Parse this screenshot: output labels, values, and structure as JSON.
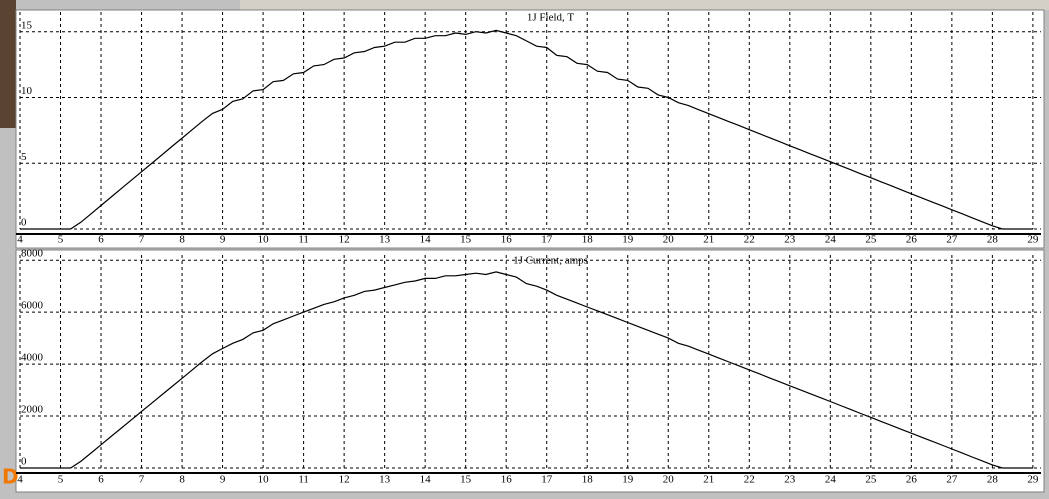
{
  "chart_data": [
    {
      "type": "line",
      "title": "1J Field, T",
      "color": "#000000",
      "grid": true,
      "xlim": [
        4,
        29.2
      ],
      "ylim": [
        0,
        16.5
      ],
      "xticks": [
        4,
        5,
        6,
        7,
        8,
        9,
        10,
        11,
        12,
        13,
        14,
        15,
        16,
        17,
        18,
        19,
        20,
        21,
        22,
        23,
        24,
        25,
        26,
        27,
        28,
        29
      ],
      "yticks": [
        0,
        5,
        10,
        15
      ],
      "x": [
        4,
        4.25,
        4.5,
        4.75,
        5,
        5.25,
        5.5,
        5.75,
        6,
        6.25,
        6.5,
        6.75,
        7,
        7.25,
        7.5,
        7.75,
        8,
        8.25,
        8.5,
        8.75,
        9,
        9.25,
        9.5,
        9.75,
        10,
        10.25,
        10.5,
        10.75,
        11,
        11.25,
        11.5,
        11.75,
        12,
        12.25,
        12.5,
        12.75,
        13,
        13.25,
        13.5,
        13.75,
        14,
        14.25,
        14.5,
        14.75,
        15,
        15.25,
        15.5,
        15.75,
        16,
        16.25,
        16.5,
        16.75,
        17,
        17.25,
        17.5,
        17.75,
        18,
        18.25,
        18.5,
        18.75,
        19,
        19.25,
        19.5,
        19.75,
        20,
        20.25,
        20.5,
        20.75,
        21,
        21.25,
        21.5,
        21.75,
        22,
        22.25,
        22.5,
        22.75,
        23,
        23.25,
        23.5,
        23.75,
        24,
        24.25,
        24.5,
        24.75,
        25,
        25.25,
        25.5,
        25.75,
        26,
        26.25,
        26.5,
        26.75,
        27,
        27.25,
        27.5,
        27.75,
        28,
        28.25,
        28.5,
        28.75,
        29
      ],
      "values": [
        0,
        0,
        0,
        0,
        0,
        0,
        0.51,
        1.15,
        1.79,
        2.43,
        3.07,
        3.71,
        4.35,
        4.99,
        5.63,
        6.27,
        6.91,
        7.55,
        8.19,
        8.79,
        9.1,
        9.7,
        9.9,
        10.5,
        10.6,
        11.2,
        11.3,
        11.8,
        11.9,
        12.4,
        12.5,
        12.9,
        13.0,
        13.4,
        13.5,
        13.8,
        13.9,
        14.2,
        14.2,
        14.5,
        14.5,
        14.7,
        14.7,
        14.9,
        14.8,
        15.0,
        14.9,
        15.1,
        14.9,
        14.7,
        14.3,
        13.9,
        13.8,
        13.2,
        13.1,
        12.6,
        12.5,
        12.0,
        11.9,
        11.4,
        11.3,
        10.8,
        10.7,
        10.2,
        10.0,
        9.6,
        9.38,
        9.07,
        8.77,
        8.46,
        8.16,
        7.86,
        7.55,
        7.25,
        6.94,
        6.64,
        6.33,
        6.03,
        5.72,
        5.42,
        5.12,
        4.81,
        4.51,
        4.2,
        3.9,
        3.59,
        3.29,
        2.98,
        2.68,
        2.37,
        2.07,
        1.77,
        1.46,
        1.16,
        0.85,
        0.55,
        0.24,
        0,
        0,
        0,
        0
      ]
    },
    {
      "type": "line",
      "title": "1J Current, amps",
      "color": "#000000",
      "grid": true,
      "xlim": [
        4,
        29.2
      ],
      "ylim": [
        0,
        8200
      ],
      "xticks": [
        4,
        5,
        6,
        7,
        8,
        9,
        10,
        11,
        12,
        13,
        14,
        15,
        16,
        17,
        18,
        19,
        20,
        21,
        22,
        23,
        24,
        25,
        26,
        27,
        28,
        29
      ],
      "yticks": [
        0,
        2000,
        4000,
        6000,
        8000
      ],
      "x": [
        4,
        4.25,
        4.5,
        4.75,
        5,
        5.25,
        5.5,
        5.75,
        6,
        6.25,
        6.5,
        6.75,
        7,
        7.25,
        7.5,
        7.75,
        8,
        8.25,
        8.5,
        8.75,
        9,
        9.25,
        9.5,
        9.75,
        10,
        10.25,
        10.5,
        10.75,
        11,
        11.25,
        11.5,
        11.75,
        12,
        12.25,
        12.5,
        12.75,
        13,
        13.25,
        13.5,
        13.75,
        14,
        14.25,
        14.5,
        14.75,
        15,
        15.25,
        15.5,
        15.75,
        16,
        16.25,
        16.5,
        16.75,
        17,
        17.25,
        17.5,
        17.75,
        18,
        18.25,
        18.5,
        18.75,
        19,
        19.25,
        19.5,
        19.75,
        20,
        20.25,
        20.5,
        20.75,
        21,
        21.25,
        21.5,
        21.75,
        22,
        22.25,
        22.5,
        22.75,
        23,
        23.25,
        23.5,
        23.75,
        24,
        24.25,
        24.5,
        24.75,
        25,
        25.25,
        25.5,
        25.75,
        26,
        26.25,
        26.5,
        26.75,
        27,
        27.25,
        27.5,
        27.75,
        28,
        28.25,
        28.5,
        28.75,
        29
      ],
      "values": [
        0,
        0,
        0,
        0,
        0,
        0,
        255,
        575,
        895,
        1215,
        1535,
        1855,
        2175,
        2495,
        2815,
        3135,
        3455,
        3775,
        4095,
        4395,
        4600,
        4800,
        4950,
        5200,
        5300,
        5550,
        5700,
        5850,
        6000,
        6150,
        6300,
        6400,
        6550,
        6650,
        6800,
        6850,
        6950,
        7050,
        7150,
        7200,
        7300,
        7300,
        7400,
        7400,
        7450,
        7500,
        7450,
        7550,
        7450,
        7350,
        7100,
        7000,
        6850,
        6650,
        6500,
        6350,
        6200,
        6050,
        5900,
        5750,
        5600,
        5450,
        5300,
        5150,
        5000,
        4800,
        4690,
        4535,
        4385,
        4230,
        4080,
        3930,
        3775,
        3625,
        3470,
        3320,
        3165,
        3015,
        2860,
        2710,
        2560,
        2405,
        2255,
        2100,
        1950,
        1795,
        1645,
        1490,
        1340,
        1185,
        1035,
        885,
        730,
        580,
        425,
        275,
        120,
        0,
        0,
        0,
        0
      ]
    }
  ]
}
